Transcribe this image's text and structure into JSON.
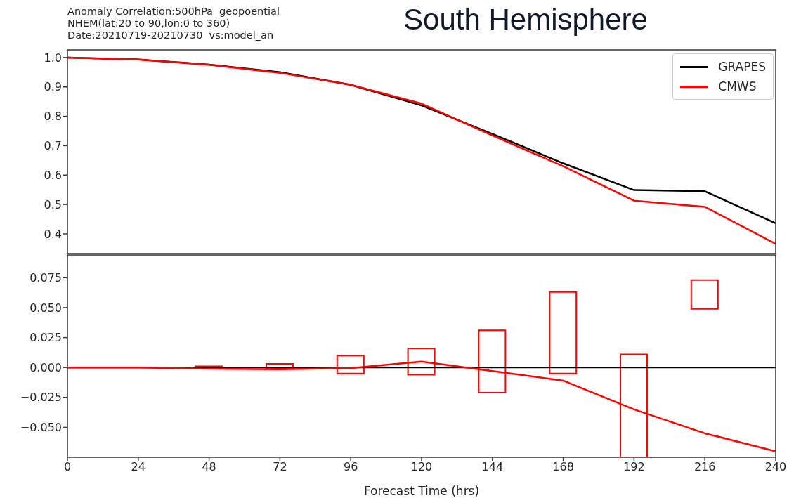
{
  "chart_data": [
    {
      "type": "line",
      "title": "South Hemisphere",
      "annotations": [
        "Anomaly Correlation:500hPa  geopoential",
        "NHEM(lat:20 to 90,lon:0 to 360)",
        "Date:20210719-20210730  vs:model_an"
      ],
      "x": [
        0,
        24,
        48,
        72,
        96,
        120,
        144,
        168,
        192,
        216,
        240
      ],
      "xlim": [
        0,
        240
      ],
      "xticks": [
        0,
        24,
        48,
        72,
        96,
        120,
        144,
        168,
        192,
        216,
        240
      ],
      "ylim": [
        0.333,
        1.026
      ],
      "yticks": [
        0.4,
        0.5,
        0.6,
        0.7,
        0.8,
        0.9,
        {
          "value": 1,
          "label": "1.0"
        }
      ],
      "tick_labels": "y",
      "legend": "top right",
      "series": [
        {
          "name": "GRAPES",
          "color": "#000000",
          "values": [
            1.0,
            0.993,
            0.976,
            0.95,
            0.907,
            0.837,
            0.74,
            0.64,
            0.549,
            0.545,
            0.436
          ]
        },
        {
          "name": "CMWS",
          "color": "#ff0000",
          "values": [
            1.0,
            0.993,
            0.975,
            0.948,
            0.907,
            0.843,
            0.735,
            0.63,
            0.513,
            0.492,
            0.366
          ]
        }
      ]
    },
    {
      "type": "line",
      "xlabel": "Forecast Time (hrs)",
      "x": [
        0,
        24,
        48,
        72,
        96,
        120,
        144,
        168,
        192,
        216,
        240
      ],
      "xlim": [
        0,
        240
      ],
      "xticks": [
        0,
        24,
        48,
        72,
        96,
        120,
        144,
        168,
        192,
        216,
        240
      ],
      "ylim": [
        -0.075,
        0.094
      ],
      "yticks": [
        {
          "value": -0.05,
          "label": "−0.050"
        },
        {
          "value": -0.025,
          "label": "−0.025"
        },
        {
          "value": 0,
          "label": "0.000"
        },
        {
          "value": 0.025,
          "label": "0.025"
        },
        {
          "value": 0.05,
          "label": "0.050"
        },
        {
          "value": 0.075,
          "label": "0.075"
        }
      ],
      "ref_lines": [
        {
          "axis": "y",
          "value": 0,
          "color": "#000000"
        }
      ],
      "series": [
        {
          "color": "#ff0000",
          "values": [
            0,
            0,
            -0.001,
            -0.0015,
            -0.0005,
            0.005,
            -0.003,
            -0.011,
            -0.035,
            -0.055,
            -0.07
          ]
        },
        {
          "type": "bar",
          "color": "#ff0000",
          "x": [
            48,
            72,
            96,
            120,
            144,
            168,
            192,
            216
          ],
          "base": [
            0,
            -0.001,
            -0.005,
            -0.006,
            -0.021,
            -0.005,
            -0.075,
            0.049
          ],
          "values": [
            0.001,
            0.004,
            0.015,
            0.022,
            0.052,
            0.068,
            0.086,
            0.024
          ]
        }
      ]
    }
  ]
}
